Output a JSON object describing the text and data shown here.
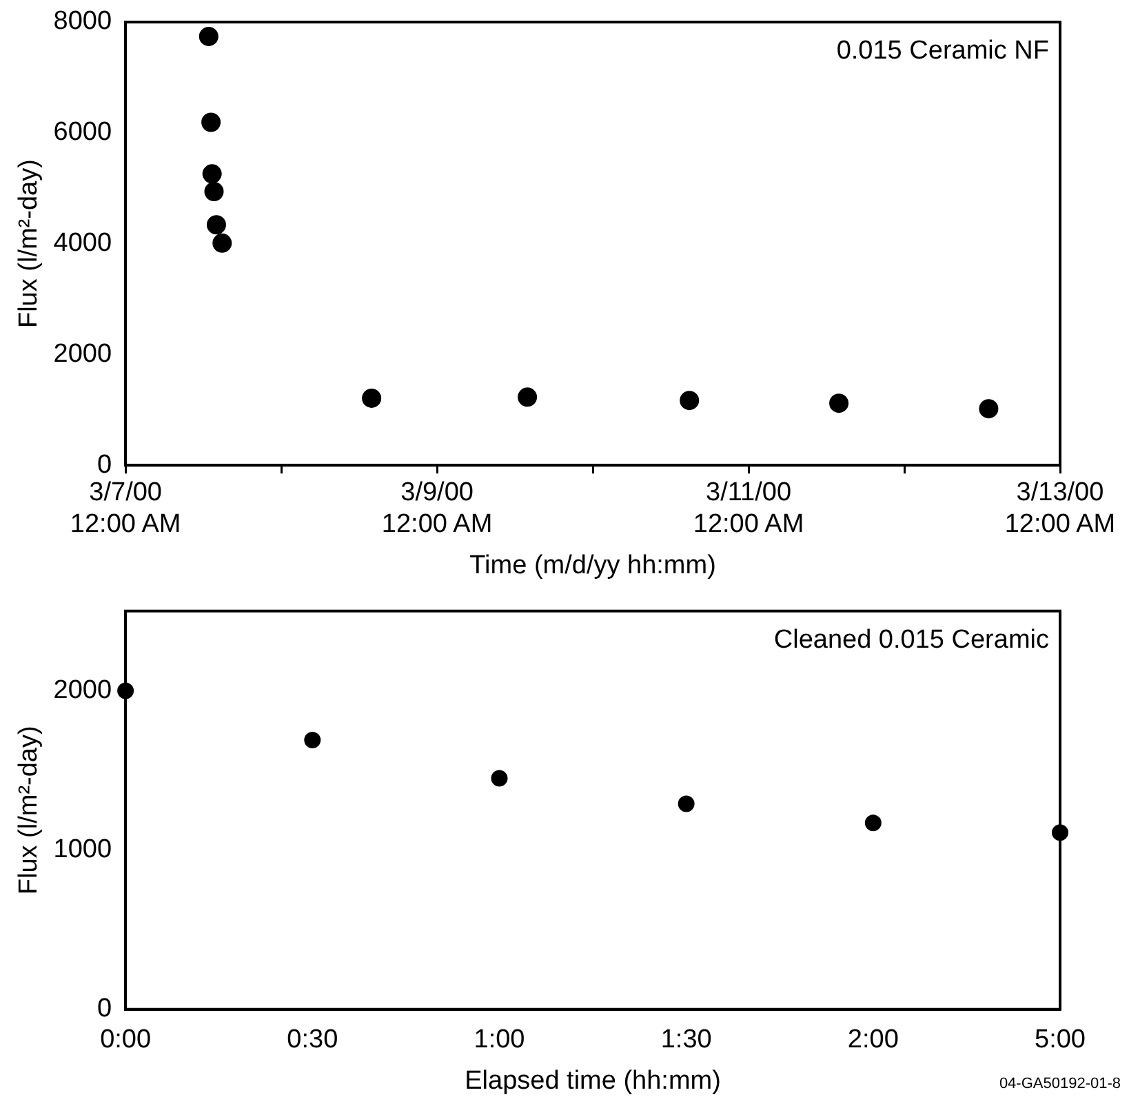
{
  "chart_data": [
    {
      "type": "scatter",
      "xlabel": "Time (m/d/yy hh:mm)",
      "ylabel": "Flux (l/m²-day)",
      "annotations": [
        "0.015 Ceramic NF"
      ],
      "marker": "circle",
      "x": [
        "2000-03-07T12:49",
        "2000-03-07T13:10",
        "2000-03-07T13:20",
        "2000-03-07T13:38",
        "2000-03-07T14:00",
        "2000-03-07T14:53",
        "2000-03-08T13:55",
        "2000-03-09T13:55",
        "2000-03-10T14:53",
        "2000-03-11T13:55",
        "2000-03-12T13:00"
      ],
      "series": [
        {
          "color": "#000000",
          "values": [
            7740,
            6190,
            5260,
            4940,
            4340,
            4010,
            1210,
            1230,
            1170,
            1120,
            1020
          ]
        }
      ],
      "xlim": [
        "2000-03-07",
        "2000-03-13"
      ],
      "xticks": [
        {
          "value": "2000-03-07",
          "label": "3/7/00\n12:00 AM"
        },
        {
          "value": "2000-03-08",
          "label": null
        },
        {
          "value": "2000-03-09",
          "label": "3/9/00\n12:00 AM"
        },
        {
          "value": "2000-03-10",
          "label": null
        },
        {
          "value": "2000-03-11",
          "label": "3/11/00\n12:00 AM"
        },
        {
          "value": "2000-03-12",
          "label": null
        },
        {
          "value": "2000-03-13",
          "label": "3/13/00\n12:00 AM"
        }
      ],
      "ylim": [
        0,
        8000
      ],
      "yticks": [
        0,
        2000,
        4000,
        6000,
        8000
      ]
    },
    {
      "type": "scatter",
      "xlabel": "Elapsed time (hh:mm)",
      "ylabel": "Flux (l/m²-day)",
      "annotations": [
        "Cleaned 0.015 Ceramic",
        "04-GA50192-01-8"
      ],
      "marker": "circle",
      "categories": [
        "0:00",
        "0:30",
        "1:00",
        "1:30",
        "2:00",
        "5:00"
      ],
      "series": [
        {
          "color": "#000000",
          "values": [
            2000,
            1690,
            1450,
            1290,
            1170,
            1110
          ]
        }
      ],
      "ylim": [
        0,
        2500
      ],
      "yticks": [
        0,
        1000,
        2000
      ]
    }
  ]
}
